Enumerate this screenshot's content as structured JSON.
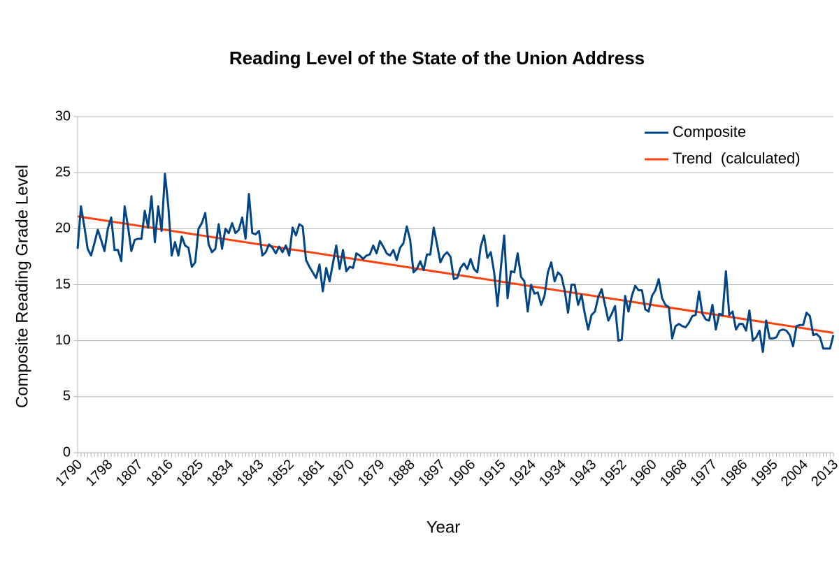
{
  "chart_data": {
    "type": "line",
    "title": "Reading Level of the State of the Union Address",
    "x_label": "Year",
    "y_label": "Composite Reading Grade Level",
    "categories": [
      "1790",
      null,
      null,
      null,
      null,
      null,
      null,
      null,
      null,
      "1798",
      null,
      null,
      null,
      null,
      null,
      null,
      null,
      null,
      "1807",
      null,
      null,
      null,
      null,
      null,
      null,
      null,
      null,
      "1816",
      null,
      null,
      null,
      null,
      null,
      null,
      null,
      null,
      "1825",
      null,
      null,
      null,
      null,
      null,
      null,
      null,
      null,
      "1834",
      null,
      null,
      null,
      null,
      null,
      null,
      null,
      null,
      "1843",
      null,
      null,
      null,
      null,
      null,
      null,
      null,
      null,
      "1852",
      null,
      null,
      null,
      null,
      null,
      null,
      null,
      null,
      "1861",
      null,
      null,
      null,
      null,
      null,
      null,
      null,
      null,
      "1870",
      null,
      null,
      null,
      null,
      null,
      null,
      null,
      null,
      "1879",
      null,
      null,
      null,
      null,
      null,
      null,
      null,
      null,
      "1888",
      null,
      null,
      null,
      null,
      null,
      null,
      null,
      null,
      "1897",
      null,
      null,
      null,
      null,
      null,
      null,
      null,
      null,
      "1906",
      null,
      null,
      null,
      null,
      null,
      null,
      null,
      null,
      "1915",
      null,
      null,
      null,
      null,
      null,
      null,
      null,
      null,
      "1924",
      null,
      null,
      null,
      null,
      null,
      null,
      null,
      null,
      "1934",
      null,
      null,
      null,
      null,
      null,
      null,
      null,
      null,
      "1943",
      null,
      null,
      null,
      null,
      null,
      null,
      null,
      null,
      "1952",
      null,
      null,
      null,
      null,
      null,
      null,
      null,
      null,
      "1960",
      null,
      null,
      null,
      null,
      null,
      null,
      null,
      null,
      "1968",
      null,
      null,
      null,
      null,
      null,
      null,
      null,
      null,
      "1977",
      null,
      null,
      null,
      null,
      null,
      null,
      null,
      null,
      "1986",
      null,
      null,
      null,
      null,
      null,
      null,
      null,
      null,
      "1995",
      null,
      null,
      null,
      null,
      null,
      null,
      null,
      null,
      "2004",
      null,
      null,
      null,
      null,
      null,
      null,
      null,
      null,
      "2013"
    ],
    "series": [
      {
        "name": "Composite",
        "color": "#004586",
        "values": [
          18.2,
          22,
          20.2,
          18.2,
          17.6,
          18.7,
          19.9,
          19,
          18,
          20,
          21,
          18.1,
          18.1,
          17.1,
          22,
          20.2,
          18,
          19,
          19.1,
          19.1,
          21.6,
          20.1,
          22.9,
          18.8,
          22,
          19.8,
          24.9,
          22,
          17.6,
          18.8,
          17.6,
          19.3,
          18.5,
          18.3,
          16.6,
          17,
          20,
          20.5,
          21.4,
          18.6,
          17.9,
          18.2,
          20.4,
          18.2,
          20,
          19.6,
          20.5,
          19.6,
          19.9,
          21,
          19.1,
          23.1,
          19.6,
          19.5,
          19.8,
          17.6,
          17.9,
          18.6,
          18.3,
          17.8,
          18.4,
          17.9,
          18.5,
          17.6,
          20.1,
          19.4,
          20.4,
          20.2,
          17.2,
          16.6,
          16.1,
          15.6,
          16.8,
          14.4,
          16.5,
          15.3,
          16.9,
          18.5,
          16.4,
          18.1,
          16.2,
          16.6,
          16.5,
          17.8,
          17.6,
          17.3,
          17.6,
          17.7,
          18.5,
          17.8,
          18.9,
          18.4,
          17.8,
          17.6,
          18.1,
          17.2,
          18.3,
          18.7,
          20.2,
          19,
          16.1,
          16.4,
          17.1,
          16.3,
          17.7,
          17.7,
          20.1,
          18.6,
          17,
          17.6,
          17.9,
          17.5,
          15.5,
          15.6,
          16.5,
          16.9,
          16.4,
          17.3,
          16.4,
          16.1,
          18.4,
          19.4,
          17.4,
          17.9,
          16.1,
          13.1,
          16.5,
          19.4,
          13.8,
          16.2,
          16.1,
          17.8,
          15.7,
          15.3,
          12.6,
          15,
          14.2,
          14.3,
          13.2,
          14,
          16.1,
          17,
          15.3,
          16.1,
          15.8,
          14.5,
          12.5,
          15,
          15,
          13.2,
          14.1,
          12.4,
          11,
          12.3,
          12.6,
          13.9,
          14.6,
          13.2,
          11.8,
          12.4,
          13.1,
          10,
          10.1,
          14,
          12.6,
          14,
          14.9,
          14.5,
          14.5,
          12.8,
          12.6,
          14,
          14.5,
          15.5,
          13.8,
          13.2,
          13,
          10.2,
          11.3,
          11.5,
          11.3,
          11.2,
          11.6,
          12.2,
          12.3,
          14.4,
          12.4,
          11.9,
          11.8,
          13.2,
          11,
          12.4,
          12.3,
          16.2,
          12.3,
          12.6,
          11,
          11.5,
          11.5,
          10.9,
          12.7,
          10,
          10.3,
          10.9,
          9,
          11.8,
          10.2,
          10.2,
          10.3,
          10.9,
          11,
          10.9,
          10.5,
          9.5,
          11.3,
          11.4,
          11.4,
          12.5,
          12.2,
          10.5,
          10.6,
          10.3,
          9.3,
          9.3,
          9.3,
          10.5
        ]
      }
    ],
    "trendline": {
      "name": "Trend  (calculated)",
      "color": "#ff420e",
      "values": [
        21.1,
        10.7
      ]
    },
    "ylim": [
      0,
      30
    ],
    "yticks": [
      0,
      5,
      10,
      15,
      20,
      25,
      30
    ],
    "grid": true,
    "legend": "top-right"
  }
}
